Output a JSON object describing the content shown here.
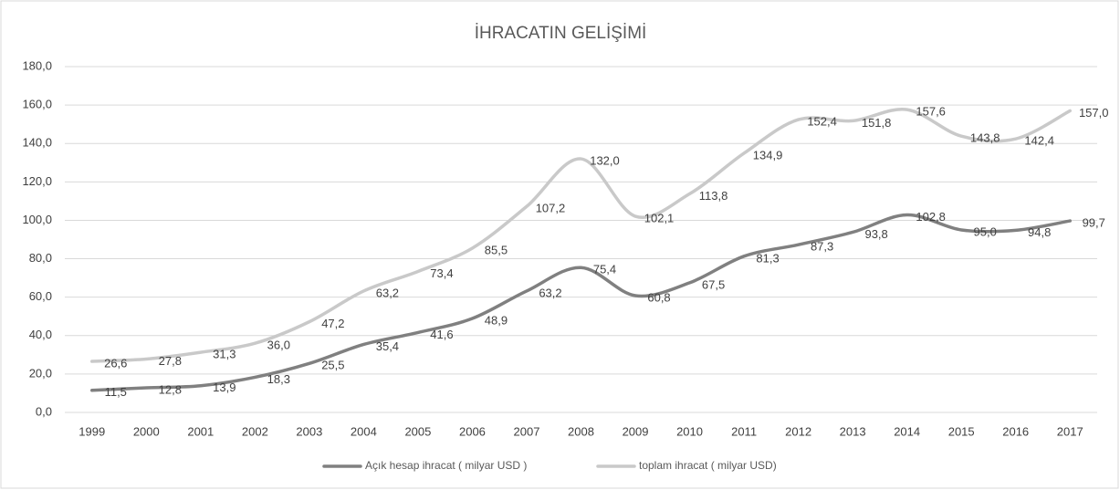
{
  "chart_data": {
    "type": "line",
    "title": "İHRACATIN GELİŞİMİ",
    "categories": [
      "1999",
      "2000",
      "2001",
      "2002",
      "2003",
      "2004",
      "2005",
      "2006",
      "2007",
      "2008",
      "2009",
      "2010",
      "2011",
      "2012",
      "2013",
      "2014",
      "2015",
      "2016",
      "2017"
    ],
    "series": [
      {
        "name": "Açık hesap ihracat ( milyar USD )",
        "color": "#808080",
        "values": [
          11.5,
          12.8,
          13.9,
          18.3,
          25.5,
          35.4,
          41.6,
          48.9,
          63.2,
          75.4,
          60.8,
          67.5,
          81.3,
          87.3,
          93.8,
          102.8,
          95.0,
          94.8,
          99.7
        ],
        "value_labels": [
          "11,5",
          "12,8",
          "13,9",
          "18,3",
          "25,5",
          "35,4",
          "41,6",
          "48,9",
          "63,2",
          "75,4",
          "60,8",
          "67,5",
          "81,3",
          "87,3",
          "93,8",
          "102,8",
          "95,0",
          "94,8",
          "99,7"
        ]
      },
      {
        "name": "toplam ihracat ( milyar USD)",
        "color": "#c9c9c9",
        "values": [
          26.6,
          27.8,
          31.3,
          36.0,
          47.2,
          63.2,
          73.4,
          85.5,
          107.2,
          132.0,
          102.1,
          113.8,
          134.9,
          152.4,
          151.8,
          157.6,
          143.8,
          142.4,
          157.0
        ],
        "value_labels": [
          "26,6",
          "27,8",
          "31,3",
          "36,0",
          "47,2",
          "63,2",
          "73,4",
          "85,5",
          "107,2",
          "132,0",
          "102,1",
          "113,8",
          "134,9",
          "152,4",
          "151,8",
          "157,6",
          "143,8",
          "142,4",
          "157,0"
        ]
      }
    ],
    "ylim": [
      0,
      180
    ],
    "yticks": [
      {
        "value": 0,
        "label": "0,0"
      },
      {
        "value": 20,
        "label": "20,0"
      },
      {
        "value": 40,
        "label": "40,0"
      },
      {
        "value": 60,
        "label": "60,0"
      },
      {
        "value": 80,
        "label": "80,0"
      },
      {
        "value": 100,
        "label": "100,0"
      },
      {
        "value": 120,
        "label": "120,0"
      },
      {
        "value": 140,
        "label": "140,0"
      },
      {
        "value": 160,
        "label": "160,0"
      },
      {
        "value": 180,
        "label": "180,0"
      }
    ],
    "grid": true,
    "smooth": true,
    "legend": "bottom"
  }
}
